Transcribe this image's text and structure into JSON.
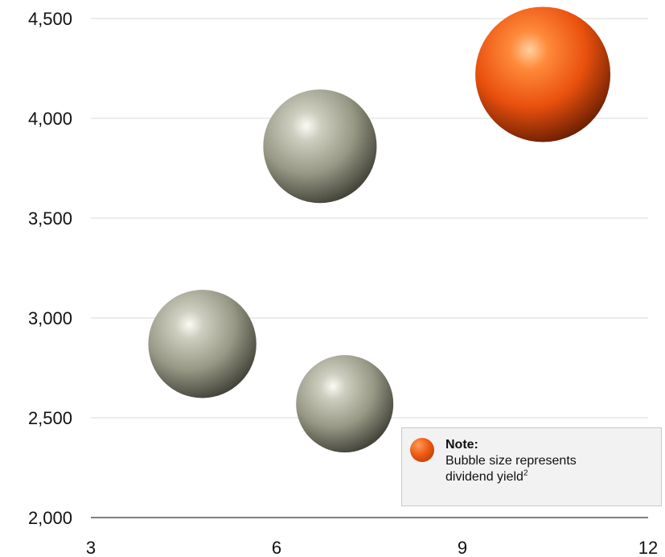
{
  "chart_data": {
    "type": "scatter",
    "title": "",
    "xlabel": "",
    "ylabel": "",
    "xlim": [
      3,
      12
    ],
    "ylim": [
      2000,
      4500
    ],
    "xticks": [
      "3",
      "6",
      "9",
      "12"
    ],
    "yticks": [
      "2,000",
      "2,500",
      "3,000",
      "3,500",
      "4,000",
      "4,500"
    ],
    "xtick_values": [
      3,
      6,
      9,
      12
    ],
    "ytick_values": [
      2000,
      2500,
      3000,
      3500,
      4000,
      4500
    ],
    "grid": "horizontal",
    "points": [
      {
        "x": 4.8,
        "y": 2870,
        "size": 0.8,
        "color": "#9b9b8a"
      },
      {
        "x": 6.7,
        "y": 3860,
        "size": 0.84,
        "color": "#9b9b8a"
      },
      {
        "x": 7.1,
        "y": 2570,
        "size": 0.72,
        "color": "#9b9b8a"
      },
      {
        "x": 10.3,
        "y": 4220,
        "size": 1.0,
        "color": "#ee5a12"
      }
    ],
    "colors": {
      "grey": "#9b9b8a",
      "highlight": "#ee5a12",
      "grid": "#d9d9d9",
      "axis": "#000000"
    }
  },
  "note": {
    "title": "Note:",
    "line1": "Bubble size represents",
    "line2": "dividend yield",
    "superscript": "2"
  }
}
